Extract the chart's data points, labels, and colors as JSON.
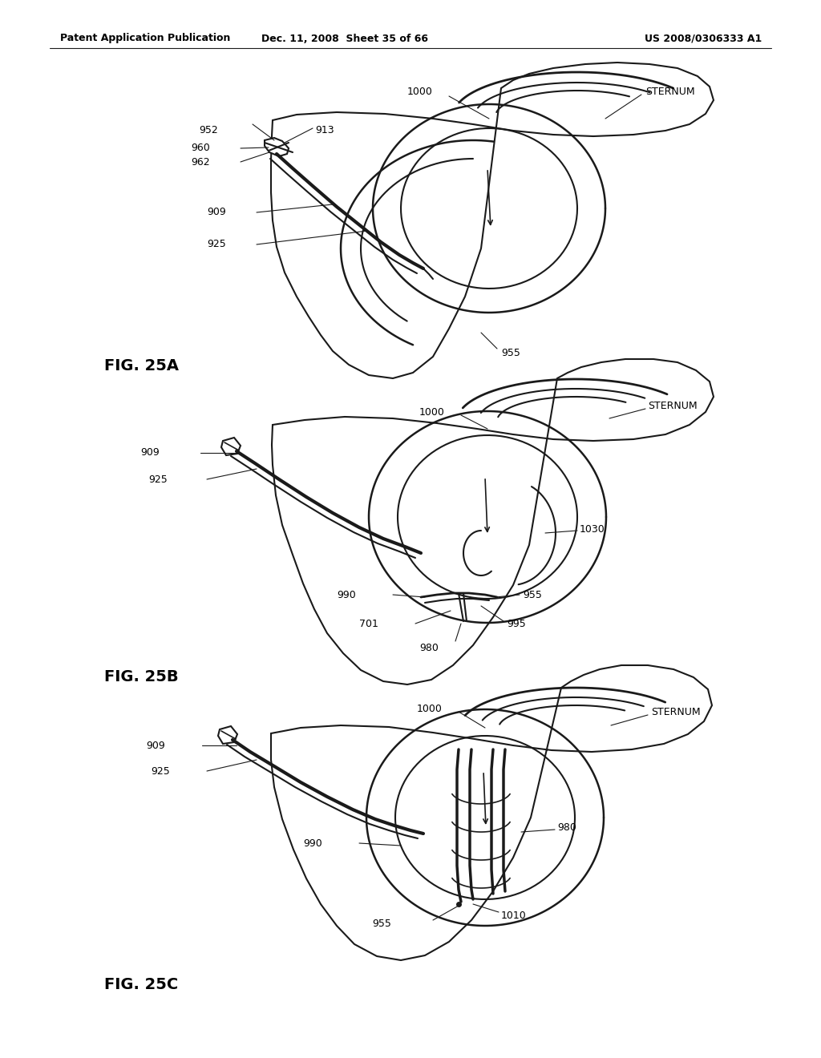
{
  "header_left": "Patent Application Publication",
  "header_center": "Dec. 11, 2008  Sheet 35 of 66",
  "header_right": "US 2008/0306333 A1",
  "background_color": "#ffffff",
  "line_color": "#1a1a1a"
}
